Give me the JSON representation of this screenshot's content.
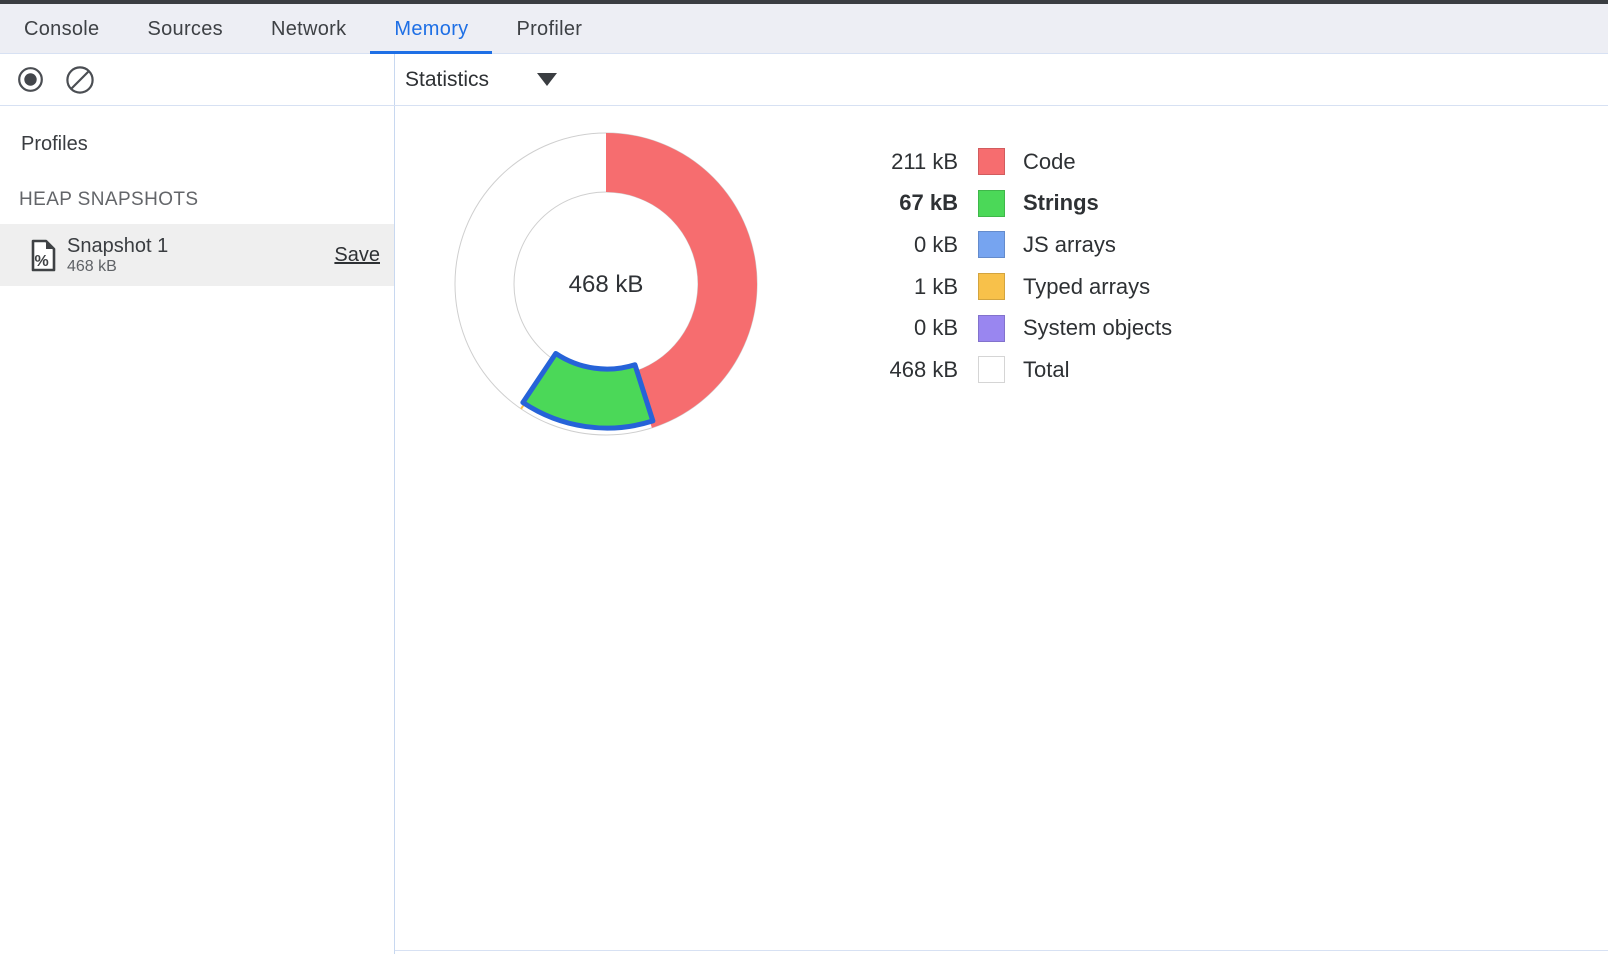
{
  "tabs": {
    "items": [
      {
        "label": "Console"
      },
      {
        "label": "Sources"
      },
      {
        "label": "Network"
      },
      {
        "label": "Memory"
      },
      {
        "label": "Profiler"
      }
    ],
    "active": "Memory"
  },
  "toolbar": {
    "record_icon": "record-icon",
    "clear_icon": "block-icon",
    "view_selector_value": "Statistics",
    "dropdown_icon": "dropdown-arrow-icon"
  },
  "sidebar": {
    "title": "Profiles",
    "section_title": "HEAP SNAPSHOTS",
    "snapshot": {
      "icon": "heap-snapshot-file-icon",
      "name": "Snapshot 1",
      "size": "468 kB",
      "save_label": "Save"
    }
  },
  "colors": {
    "accent_blue": "#1E6FE5",
    "selection_stroke": "#2663D8",
    "ring_outline": "#CFCFCF",
    "top_strip": "#3A3D41",
    "tab_bar_bg": "#EDEEF4",
    "selected_row_bg": "#EFEFEF"
  },
  "chart_data": {
    "type": "pie",
    "title": "Heap snapshot statistics",
    "center_label": "468 kB",
    "unit": "kB",
    "total_kb": 468,
    "outer_radius": 151,
    "inner_radius": 92,
    "start_angle_deg": 0,
    "legend_position": "right",
    "selection_stroke": "#2663D8",
    "ring_outline": "#CFCFCF",
    "slices": [
      {
        "label": "Code",
        "value_kb": 211,
        "display": "211 kB",
        "color": "#F66D6F",
        "selected": false,
        "is_total": false
      },
      {
        "label": "Strings",
        "value_kb": 67,
        "display": "67 kB",
        "color": "#4BD858",
        "selected": true,
        "is_total": false
      },
      {
        "label": "JS arrays",
        "value_kb": 0,
        "display": "0 kB",
        "color": "#76A4F0",
        "selected": false,
        "is_total": false
      },
      {
        "label": "Typed arrays",
        "value_kb": 1,
        "display": "1 kB",
        "color": "#F8C14A",
        "selected": false,
        "is_total": false
      },
      {
        "label": "System objects",
        "value_kb": 0,
        "display": "0 kB",
        "color": "#9986F0",
        "selected": false,
        "is_total": false
      },
      {
        "label": "Total",
        "value_kb": 468,
        "display": "468 kB",
        "color": "#FFFFFF",
        "selected": false,
        "is_total": true
      }
    ]
  }
}
